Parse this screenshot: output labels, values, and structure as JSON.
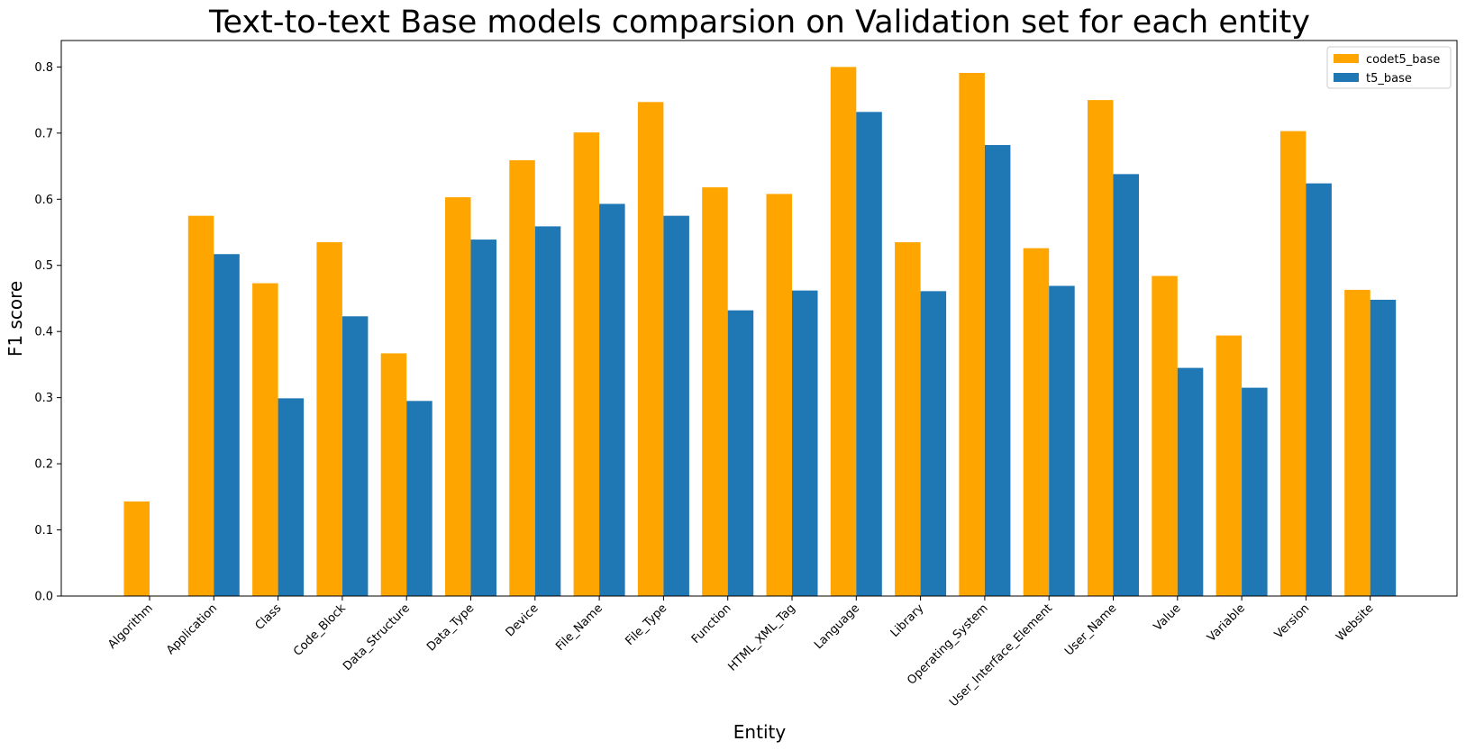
{
  "chart_data": {
    "type": "bar",
    "title": "Text-to-text Base models comparsion on Validation set for each entity",
    "xlabel": "Entity",
    "ylabel": "F1 score",
    "ylim": [
      0,
      0.84
    ],
    "yticks": [
      "0.0",
      "0.1",
      "0.2",
      "0.3",
      "0.4",
      "0.5",
      "0.6",
      "0.7",
      "0.8"
    ],
    "grid": false,
    "legend_position": "top-right",
    "categories": [
      "Algorithm",
      "Application",
      "Class",
      "Code_Block",
      "Data_Structure",
      "Data_Type",
      "Device",
      "File_Name",
      "File_Type",
      "Function",
      "HTML_XML_Tag",
      "Language",
      "Library",
      "Operating_System",
      "User_Interface_Element",
      "User_Name",
      "Value",
      "Variable",
      "Version",
      "Website"
    ],
    "series": [
      {
        "name": "codet5_base",
        "color": "#ffa500",
        "values": [
          0.143,
          0.575,
          0.473,
          0.535,
          0.367,
          0.603,
          0.659,
          0.701,
          0.747,
          0.618,
          0.608,
          0.8,
          0.535,
          0.791,
          0.526,
          0.75,
          0.484,
          0.394,
          0.703,
          0.463
        ]
      },
      {
        "name": "t5_base",
        "color": "#1f77b4",
        "values": [
          0.0,
          0.517,
          0.299,
          0.423,
          0.295,
          0.539,
          0.559,
          0.593,
          0.575,
          0.432,
          0.462,
          0.732,
          0.461,
          0.682,
          0.469,
          0.638,
          0.345,
          0.315,
          0.624,
          0.448
        ]
      }
    ]
  }
}
